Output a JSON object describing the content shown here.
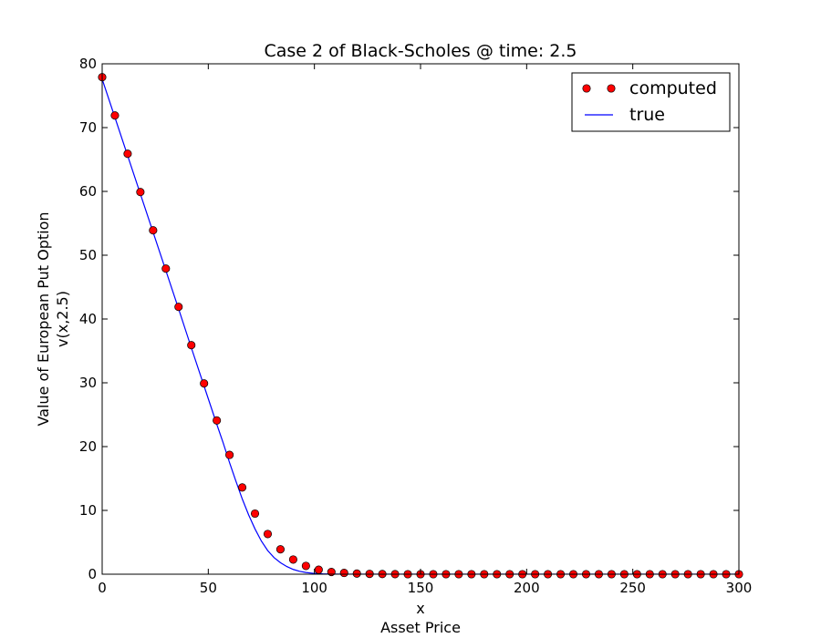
{
  "chart_data": {
    "type": "scatter",
    "title": "Case 2 of Black-Scholes @ time: 2.5",
    "xlabel_lines": [
      "x",
      "Asset Price"
    ],
    "ylabel_lines": [
      "Value of European Put Option",
      "v(x,2.5)"
    ],
    "xlim": [
      0,
      300
    ],
    "ylim": [
      0,
      80
    ],
    "xticks": [
      0,
      50,
      100,
      150,
      200,
      250,
      300
    ],
    "yticks": [
      0,
      10,
      20,
      30,
      40,
      50,
      60,
      70,
      80
    ],
    "grid": false,
    "legend_position": "top-right",
    "colors": {
      "computed": "#ff0000",
      "true": "#0000ff"
    },
    "series": [
      {
        "name": "computed",
        "style": "markers",
        "x": [
          0,
          6,
          12,
          18,
          24,
          30,
          36,
          42,
          48,
          54,
          60,
          66,
          72,
          78,
          84,
          90,
          96,
          102,
          108,
          114,
          120,
          126,
          132,
          138,
          144,
          150,
          156,
          162,
          168,
          174,
          180,
          186,
          192,
          198,
          204,
          210,
          216,
          222,
          228,
          234,
          240,
          246,
          252,
          258,
          264,
          270,
          276,
          282,
          288,
          294,
          300
        ],
        "y": [
          77.9,
          71.9,
          65.9,
          59.9,
          53.9,
          47.9,
          41.9,
          35.9,
          29.9,
          24.1,
          18.7,
          13.6,
          9.5,
          6.3,
          3.9,
          2.3,
          1.3,
          0.7,
          0.35,
          0.2,
          0.1,
          0.05,
          0.03,
          0.01,
          0,
          0,
          0,
          0,
          0,
          0,
          0,
          0,
          0,
          0,
          0,
          0,
          0,
          0,
          0,
          0,
          0,
          0,
          0,
          0,
          0,
          0,
          0,
          0,
          0,
          0,
          0
        ]
      },
      {
        "name": "true",
        "style": "line",
        "x": [
          0,
          6,
          12,
          18,
          24,
          30,
          36,
          42,
          48,
          54,
          57,
          60,
          63,
          66,
          69,
          72,
          75,
          78,
          81,
          84,
          87,
          90,
          93,
          96,
          100,
          104,
          108,
          114,
          120,
          130,
          150,
          300
        ],
        "y": [
          77.6,
          71.6,
          65.6,
          59.6,
          53.6,
          47.6,
          41.6,
          35.5,
          29.5,
          23.5,
          20.6,
          17.5,
          14.6,
          11.8,
          9.3,
          7.1,
          5.2,
          3.7,
          2.6,
          1.8,
          1.2,
          0.75,
          0.45,
          0.27,
          0.12,
          0.05,
          0.02,
          0.005,
          0,
          0,
          0,
          0
        ]
      }
    ]
  }
}
